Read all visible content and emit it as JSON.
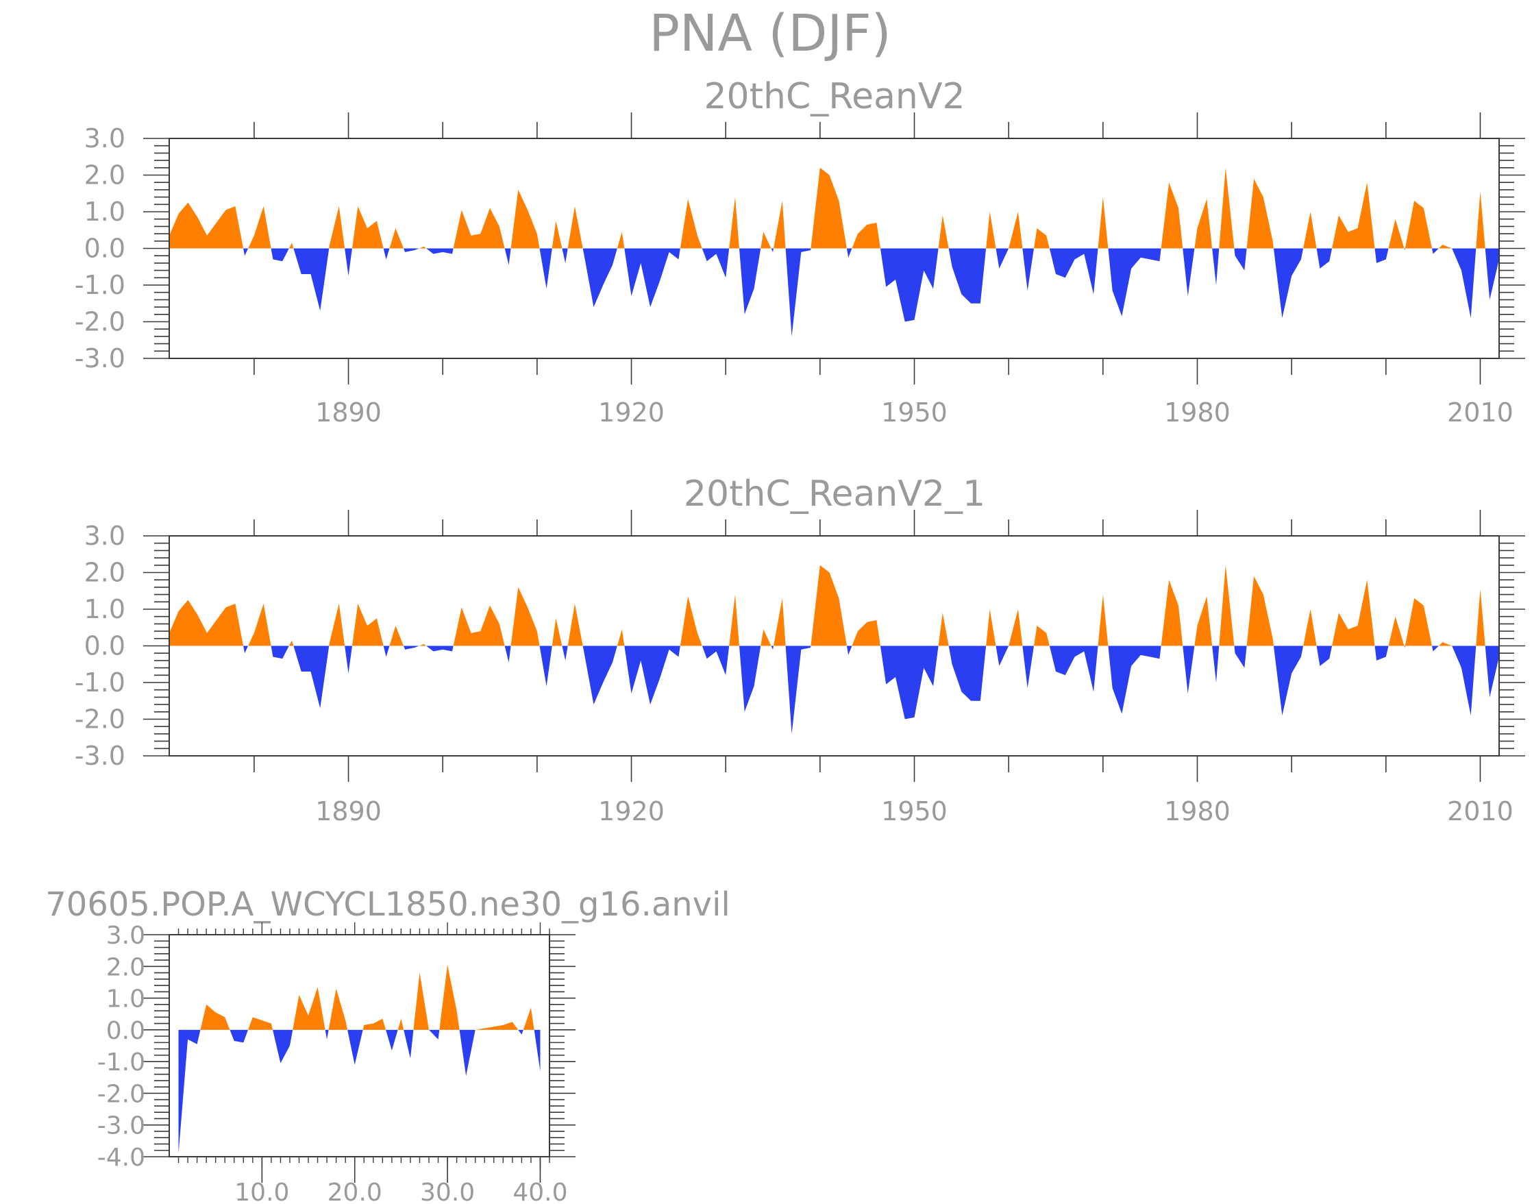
{
  "page_title": "PNA (DJF)",
  "colors": {
    "positive": "#ff8000",
    "negative": "#2a3ff2",
    "axis": "#3a3a3a",
    "text": "#9a9a9a"
  },
  "chart_data": [
    {
      "type": "area",
      "title": "20thC_ReanV2",
      "xlabel": "",
      "ylabel": "",
      "xlim": [
        1871,
        2012
      ],
      "ylim": [
        -3,
        3
      ],
      "yticks": [
        -3,
        -2,
        -1,
        0,
        1,
        2,
        3
      ],
      "ytick_labels": [
        "-3.0",
        "-2.0",
        "-1.0",
        "0.0",
        "1.0",
        "2.0",
        "3.0"
      ],
      "xticks": [
        1890,
        1920,
        1950,
        1980,
        2010
      ],
      "xtick_labels": [
        "1890",
        "1920",
        "1950",
        "1980",
        "2010"
      ],
      "x_start": 1871,
      "values": [
        0.35,
        0.95,
        1.25,
        0.85,
        0.35,
        0.7,
        1.05,
        1.15,
        -0.2,
        0.35,
        1.15,
        -0.3,
        -0.35,
        0.15,
        -0.7,
        -0.7,
        -1.7,
        0.1,
        1.15,
        -0.75,
        1.15,
        0.55,
        0.75,
        -0.3,
        0.55,
        -0.1,
        -0.05,
        0.05,
        -0.15,
        -0.1,
        -0.15,
        1.05,
        0.35,
        0.4,
        1.1,
        0.6,
        -0.45,
        1.6,
        1.05,
        0.4,
        -1.1,
        0.75,
        -0.4,
        1.15,
        -0.2,
        -1.6,
        -1.0,
        -0.45,
        0.45,
        -1.3,
        -0.4,
        -1.6,
        -0.9,
        -0.1,
        -0.3,
        1.35,
        0.35,
        -0.35,
        -0.15,
        -0.8,
        1.4,
        -1.8,
        -1.1,
        0.45,
        -0.1,
        1.3,
        -2.4,
        -0.1,
        -0.05,
        2.2,
        2.0,
        1.3,
        -0.25,
        0.4,
        0.65,
        0.7,
        -1.05,
        -0.85,
        -2.0,
        -1.95,
        -0.6,
        -1.1,
        0.9,
        -0.5,
        -1.25,
        -1.5,
        -1.5,
        1.0,
        -0.55,
        0.0,
        1.0,
        -1.15,
        0.55,
        0.35,
        -0.7,
        -0.8,
        -0.3,
        -0.15,
        -1.25,
        1.4,
        -1.15,
        -1.85,
        -0.55,
        -0.25,
        -0.3,
        -0.35,
        1.8,
        1.1,
        -1.3,
        0.55,
        1.35,
        -1.0,
        2.2,
        -0.2,
        -0.6,
        1.9,
        1.4,
        0.2,
        -1.9,
        -0.75,
        -0.3,
        1.0,
        -0.55,
        -0.35,
        0.9,
        0.45,
        0.55,
        1.8,
        -0.4,
        -0.3,
        0.8,
        -0.05,
        1.3,
        1.1,
        -0.15,
        0.1,
        0.0,
        -0.6,
        -1.9,
        1.55,
        -1.4,
        -0.3
      ]
    },
    {
      "type": "area",
      "title": "20thC_ReanV2_1",
      "xlabel": "",
      "ylabel": "",
      "xlim": [
        1871,
        2012
      ],
      "ylim": [
        -3,
        3
      ],
      "yticks": [
        -3,
        -2,
        -1,
        0,
        1,
        2,
        3
      ],
      "ytick_labels": [
        "-3.0",
        "-2.0",
        "-1.0",
        "0.0",
        "1.0",
        "2.0",
        "3.0"
      ],
      "xticks": [
        1890,
        1920,
        1950,
        1980,
        2010
      ],
      "xtick_labels": [
        "1890",
        "1920",
        "1950",
        "1980",
        "2010"
      ],
      "x_start": 1871,
      "values": [
        0.35,
        0.95,
        1.25,
        0.85,
        0.35,
        0.7,
        1.05,
        1.15,
        -0.2,
        0.35,
        1.15,
        -0.3,
        -0.35,
        0.15,
        -0.7,
        -0.7,
        -1.7,
        0.1,
        1.15,
        -0.75,
        1.15,
        0.55,
        0.75,
        -0.3,
        0.55,
        -0.1,
        -0.05,
        0.05,
        -0.15,
        -0.1,
        -0.15,
        1.05,
        0.35,
        0.4,
        1.1,
        0.6,
        -0.45,
        1.6,
        1.05,
        0.4,
        -1.1,
        0.75,
        -0.4,
        1.15,
        -0.2,
        -1.6,
        -1.0,
        -0.45,
        0.45,
        -1.3,
        -0.4,
        -1.6,
        -0.9,
        -0.1,
        -0.3,
        1.35,
        0.35,
        -0.35,
        -0.15,
        -0.8,
        1.4,
        -1.8,
        -1.1,
        0.45,
        -0.1,
        1.3,
        -2.4,
        -0.1,
        -0.05,
        2.2,
        2.0,
        1.3,
        -0.25,
        0.4,
        0.65,
        0.7,
        -1.05,
        -0.85,
        -2.0,
        -1.95,
        -0.6,
        -1.1,
        0.9,
        -0.5,
        -1.25,
        -1.5,
        -1.5,
        1.0,
        -0.55,
        0.0,
        1.0,
        -1.15,
        0.55,
        0.35,
        -0.7,
        -0.8,
        -0.3,
        -0.15,
        -1.25,
        1.4,
        -1.15,
        -1.85,
        -0.55,
        -0.25,
        -0.3,
        -0.35,
        1.8,
        1.1,
        -1.3,
        0.55,
        1.35,
        -1.0,
        2.2,
        -0.2,
        -0.6,
        1.9,
        1.4,
        0.2,
        -1.9,
        -0.75,
        -0.3,
        1.0,
        -0.55,
        -0.35,
        0.9,
        0.45,
        0.55,
        1.8,
        -0.4,
        -0.3,
        0.8,
        -0.05,
        1.3,
        1.1,
        -0.15,
        0.1,
        0.0,
        -0.6,
        -1.9,
        1.55,
        -1.4,
        -0.3
      ]
    },
    {
      "type": "area",
      "title": "70605.POP.A_WCYCL1850.ne30_g16.anvil",
      "xlabel": "",
      "ylabel": "",
      "xlim": [
        0,
        41
      ],
      "ylim": [
        -4,
        3
      ],
      "yticks": [
        -4,
        -3,
        -2,
        -1,
        0,
        1,
        2,
        3
      ],
      "ytick_labels": [
        "-4.0",
        "-3.0",
        "-2.0",
        "-1.0",
        "0.0",
        "1.0",
        "2.0",
        "3.0"
      ],
      "xticks": [
        10,
        20,
        30,
        40
      ],
      "xtick_labels": [
        "10.0",
        "20.0",
        "30.0",
        "40.0"
      ],
      "x_start": 1,
      "values": [
        -3.9,
        -0.3,
        -0.45,
        0.8,
        0.55,
        0.4,
        -0.35,
        -0.4,
        0.4,
        0.3,
        0.2,
        -1.05,
        -0.5,
        1.1,
        0.45,
        1.35,
        -0.3,
        1.3,
        0.3,
        -1.1,
        0.15,
        0.2,
        0.35,
        -0.65,
        0.35,
        -0.9,
        1.8,
        0.0,
        -0.3,
        2.05,
        0.6,
        -1.45,
        0.0,
        0.05,
        0.1,
        0.15,
        0.25,
        -0.15,
        0.7,
        -1.3
      ]
    }
  ]
}
